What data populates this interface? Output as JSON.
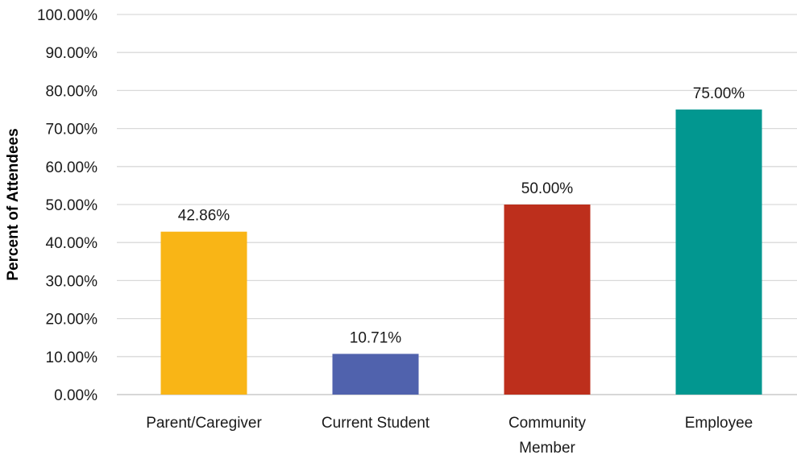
{
  "chart_data": {
    "type": "bar",
    "title": "",
    "xlabel": "",
    "ylabel": "Percent of Attendees",
    "ylim": [
      0,
      100
    ],
    "y_ticks": [
      0,
      10,
      20,
      30,
      40,
      50,
      60,
      70,
      80,
      90,
      100
    ],
    "y_tick_labels": [
      "0.00%",
      "10.00%",
      "20.00%",
      "30.00%",
      "40.00%",
      "50.00%",
      "60.00%",
      "70.00%",
      "80.00%",
      "90.00%",
      "100.00%"
    ],
    "categories": [
      "Parent/Caregiver",
      "Current Student",
      "Community Member",
      "Employee"
    ],
    "category_label_lines": [
      [
        "Parent/Caregiver"
      ],
      [
        "Current Student"
      ],
      [
        "Community",
        "Member"
      ],
      [
        "Employee"
      ]
    ],
    "values": [
      42.86,
      10.71,
      50.0,
      75.0
    ],
    "data_labels": [
      "42.86%",
      "10.71%",
      "50.00%",
      "75.00%"
    ],
    "bar_colors": [
      "#f9b516",
      "#5062ad",
      "#bd2f1c",
      "#029790"
    ],
    "grid": true,
    "legend": "none"
  }
}
